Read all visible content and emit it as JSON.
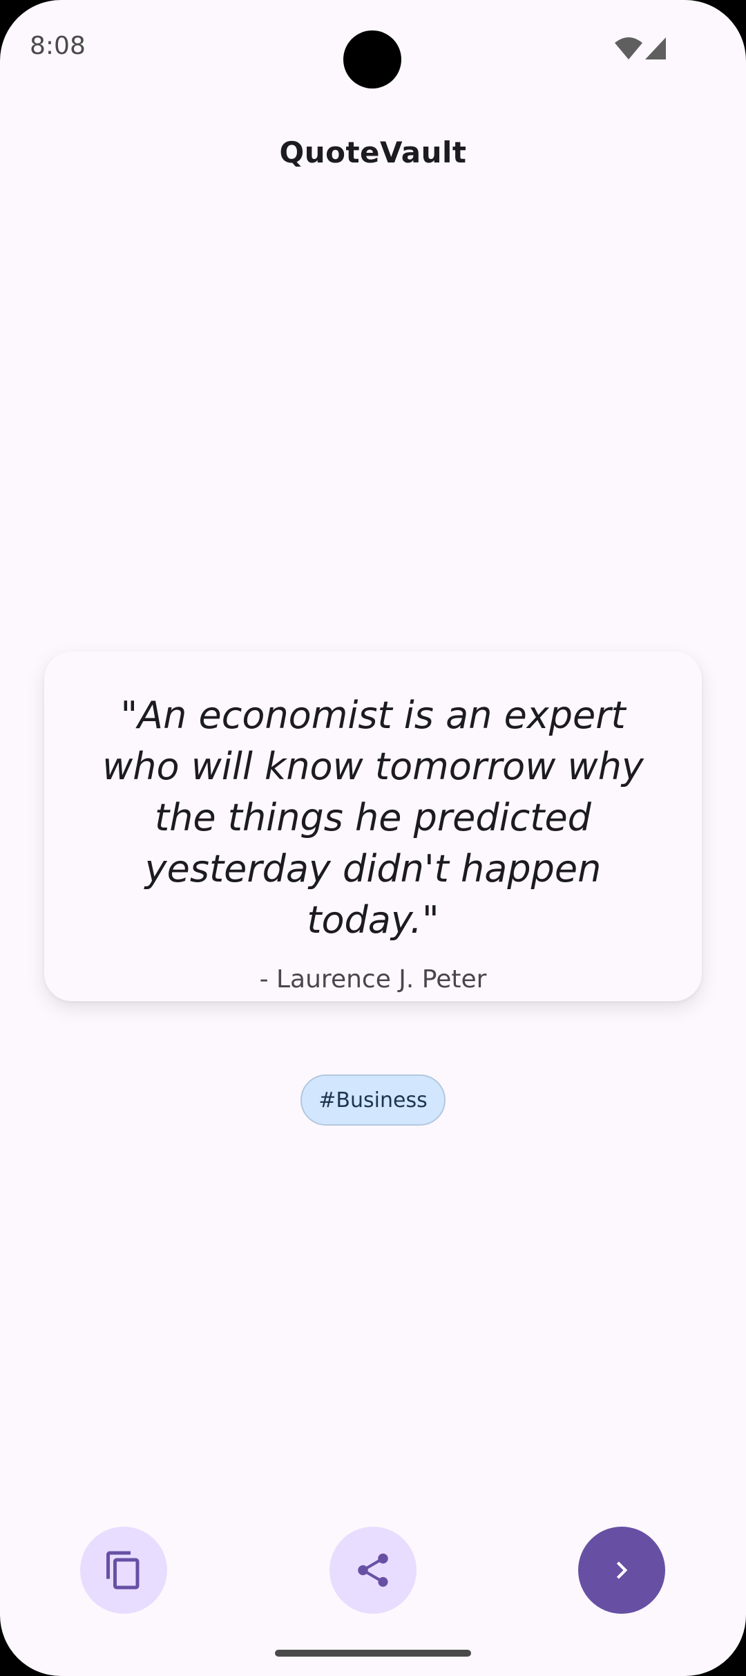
{
  "status_bar": {
    "time": "8:08",
    "icons": [
      "wifi-icon",
      "cellular-signal-icon"
    ]
  },
  "app": {
    "title": "QuoteVault"
  },
  "quote": {
    "text": "\"An economist is an expert who will know tomorrow why the things he predicted yesterday didn't happen today.\"",
    "author": "- Laurence J. Peter"
  },
  "tag": {
    "label": "#Business"
  },
  "actions": {
    "copy_icon": "copy-icon",
    "share_icon": "share-icon",
    "next_icon": "chevron-right-icon"
  },
  "colors": {
    "background": "#fdf8fd",
    "primary": "#6750a4",
    "secondary_container": "#e8ddff",
    "tag_background": "#d2e6fd",
    "tag_text": "#1d3550"
  }
}
